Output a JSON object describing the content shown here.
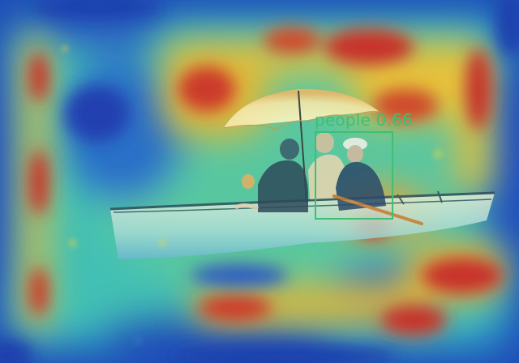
{
  "detection": {
    "label_text": "people 0.66",
    "class": "people",
    "score": 0.66,
    "box_color": "#3fbf72"
  },
  "scene": {
    "subjects": [
      "boat",
      "umbrella",
      "person",
      "person",
      "person"
    ],
    "overlay": "attention-heatmap",
    "heatmap_colors": {
      "low": "#1a3fa8",
      "mid": "#33c8c8",
      "high": "#c8282a"
    }
  }
}
